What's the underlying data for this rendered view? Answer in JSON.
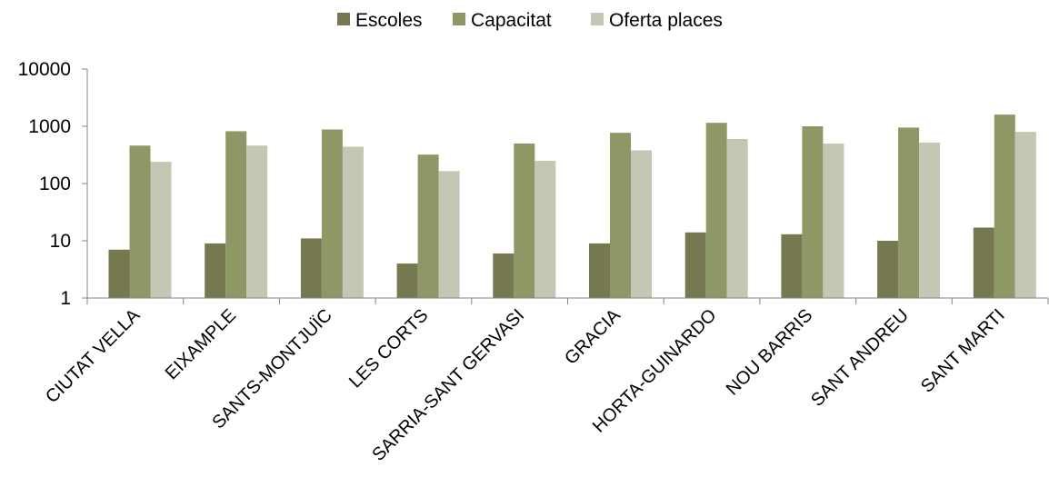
{
  "chart_data": {
    "type": "bar",
    "categories": [
      "CIUTAT VELLA",
      "EIXAMPLE",
      "SANTS-MONTJUÏC",
      "LES CORTS",
      "SARRIA-SANT GERVASI",
      "GRACIA",
      "HORTA-GUINARDO",
      "NOU BARRIS",
      "SANT ANDREU",
      "SANT MARTI"
    ],
    "series": [
      {
        "name": "Escoles",
        "color": "#76794f",
        "values": [
          7,
          9,
          11,
          4,
          6,
          9,
          14,
          13,
          10,
          17
        ]
      },
      {
        "name": "Capacitat",
        "color": "#8e9766",
        "values": [
          460,
          820,
          880,
          320,
          500,
          770,
          1150,
          1000,
          950,
          1600
        ]
      },
      {
        "name": "Oferta places",
        "color": "#c5c7b4",
        "values": [
          240,
          460,
          440,
          165,
          250,
          380,
          600,
          500,
          520,
          800
        ]
      }
    ],
    "yscale": "log",
    "ylim": [
      1,
      10000
    ],
    "yticks": [
      "1",
      "10",
      "100",
      "1000",
      "10000"
    ],
    "grid": false,
    "legend": "top-center",
    "title": "",
    "xlabel": "",
    "ylabel": ""
  }
}
